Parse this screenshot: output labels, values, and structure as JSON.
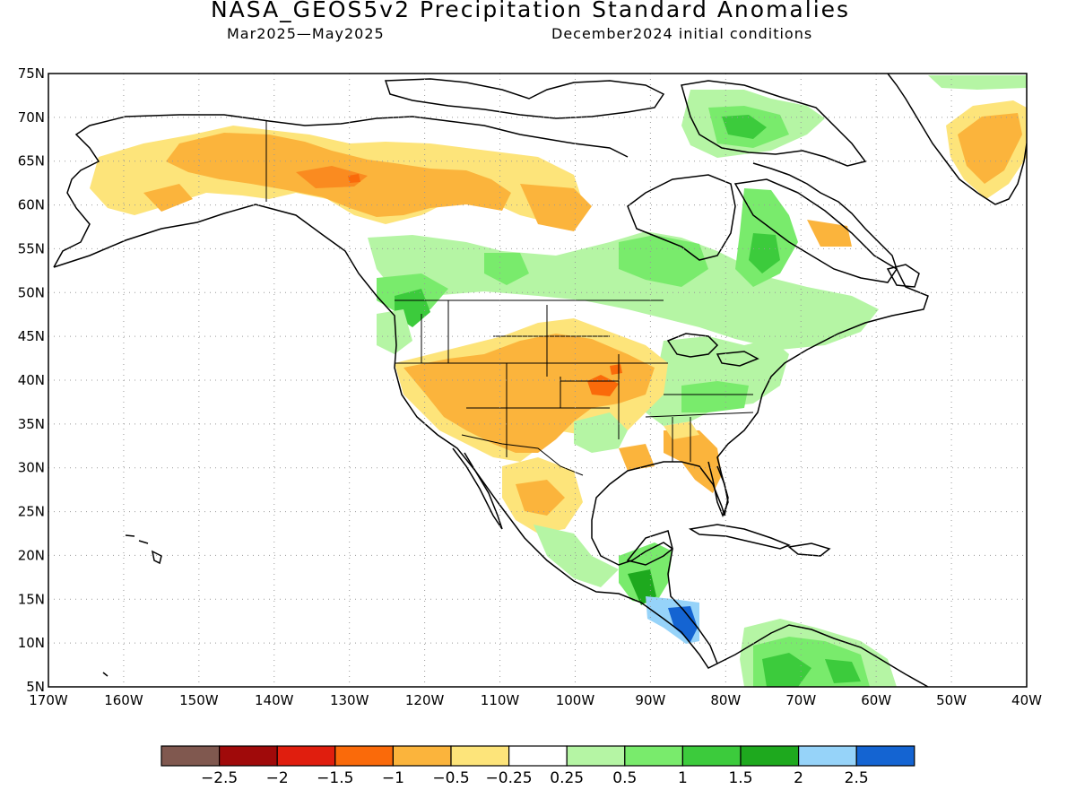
{
  "title": "NASA_GEOS5v2 Precipitation Standard Anomalies",
  "subtitle_left": "Mar2025—May2025",
  "subtitle_right": "December2024 initial conditions",
  "map": {
    "lat_range": [
      5,
      75
    ],
    "lon_range": [
      -170,
      -40
    ],
    "lat_ticks": [
      "5N",
      "10N",
      "15N",
      "20N",
      "25N",
      "30N",
      "35N",
      "40N",
      "45N",
      "50N",
      "55N",
      "60N",
      "65N",
      "70N",
      "75N"
    ],
    "lon_ticks": [
      "170W",
      "160W",
      "150W",
      "140W",
      "130W",
      "120W",
      "110W",
      "100W",
      "90W",
      "80W",
      "70W",
      "60W",
      "50W",
      "40W"
    ],
    "grid": "dotted",
    "background_color": "#ffffff",
    "coastline_color": "#000000"
  },
  "colorbar": {
    "labels": [
      "−2.5",
      "−2",
      "−1.5",
      "−1",
      "−0.5",
      "−0.25",
      "0.25",
      "0.5",
      "1",
      "1.5",
      "2",
      "2.5"
    ],
    "colors": [
      "#80584f",
      "#a00a0a",
      "#e01e0e",
      "#fa6a0a",
      "#fbb43c",
      "#fde47a",
      "#ffffff",
      "#b5f5a4",
      "#79eb6c",
      "#3ccb3c",
      "#1ea91e",
      "#96d3f9",
      "#1464d2"
    ]
  }
}
